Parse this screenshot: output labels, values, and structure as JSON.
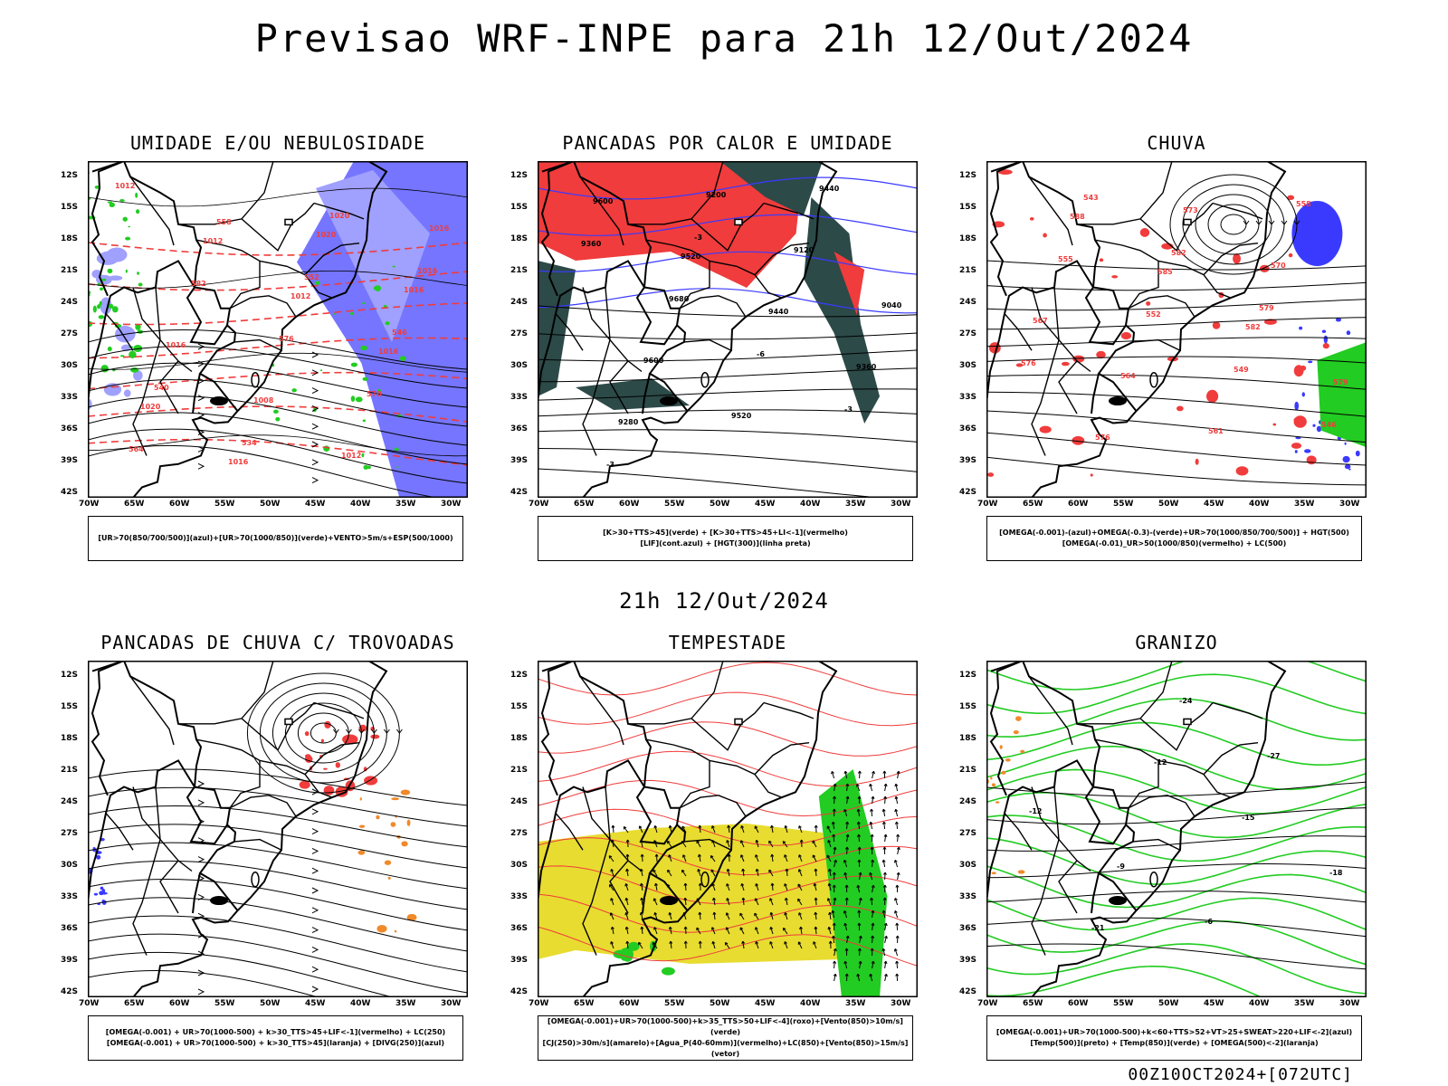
{
  "main_title": "Previsao WRF-INPE  para 21h 12/Out/2024",
  "mid_title": "21h 12/Out/2024",
  "footer": "00Z10OCT2024+[072UTC]",
  "axes": {
    "lat_labels": [
      "12S",
      "15S",
      "18S",
      "21S",
      "24S",
      "27S",
      "30S",
      "33S",
      "36S",
      "39S",
      "42S"
    ],
    "lon_labels": [
      "70W",
      "65W",
      "60W",
      "55W",
      "50W",
      "45W",
      "40W",
      "35W",
      "30W"
    ]
  },
  "panels": [
    {
      "title": "UMIDADE E/OU NEBULOSIDADE",
      "caption": [
        "[UR>70(850/700/500)](azul)+[UR>70(1000/850)](verde)+VENTO>5m/s+ESP(500/1000)"
      ],
      "labels": [
        "1012",
        "1012",
        "1012",
        "1016",
        "1020",
        "1016",
        "1020",
        "1016",
        "1016",
        "1008",
        "1012",
        "1016",
        "582",
        "576",
        "570",
        "564",
        "558",
        "552",
        "546",
        "540",
        "534",
        "1020",
        "1016"
      ]
    },
    {
      "title": "PANCADAS POR CALOR E UMIDADE",
      "caption": [
        "[K>30+TTS>45](verde) + [K>30+TTS>45+LI<-1](vermelho)",
        "[LIF](cont.azul) + [HGT(300)](linha preta)"
      ],
      "labels": [
        "9600",
        "9520",
        "9440",
        "9360",
        "9280",
        "9200",
        "9120",
        "9040",
        "9600",
        "9520",
        "9440",
        "9360",
        "9680",
        "-6",
        "-3",
        "-3",
        "-3"
      ]
    },
    {
      "title": "CHUVA",
      "caption": [
        "[OMEGA(-0.001)-(azul)+OMEGA(-0.3)-(verde)+UR>70(1000/850/700/500)] + HGT(500)",
        "[OMEGA(-0.01)_UR>50(1000/850)(vermelho) + LC(500)"
      ],
      "labels": [
        "588",
        "585",
        "582",
        "579",
        "576",
        "573",
        "570",
        "567",
        "564",
        "561",
        "558",
        "555",
        "552",
        "549",
        "546",
        "543",
        "582",
        "579",
        "576"
      ]
    },
    {
      "title": "PANCADAS DE CHUVA C/ TROVOADAS",
      "caption": [
        "[OMEGA(-0.001) + UR>70(1000-500) + k>30_TTS>45+LIF<-1](vermelho) + LC(250)",
        "[OMEGA(-0.001) + UR>70(1000-500) + k>30_TTS>45](laranja) + [DIVG(250)](azul)"
      ],
      "labels": []
    },
    {
      "title": "TEMPESTADE",
      "caption": [
        "[OMEGA(-0.001)+UR>70(1000-500)+k>35_TTS>50+LIF<-4](roxo)+[Vento(850)>10m/s](verde)",
        "[CJ(250)>30m/s](amarelo)+[Agua_P(40-60mm)](vermelho)+LC(850)+[Vento(850)>15m/s](vetor)"
      ],
      "labels": []
    },
    {
      "title": "GRANIZO",
      "caption": [
        "[OMEGA(-0.001)+UR>70(1000-500)+k<60+TTS>52+VT>25+SWEAT>220+LIF<-2](azul)",
        "[Temp(500)](preto) + [Temp(850)](verde) + [OMEGA(500)<-2](laranja)"
      ],
      "labels": [
        "-12",
        "-15",
        "-18",
        "-21",
        "-24",
        "-27",
        "-12",
        "-9",
        "-6"
      ]
    }
  ],
  "colors": {
    "red": "#f03c3c",
    "green": "#22cc22",
    "blue": "#3a3aff",
    "lightblue": "#a0a0ff",
    "yellow": "#e8dc30",
    "orange": "#f08a2a",
    "darkteal": "#2c4a48",
    "purple": "#a020a0"
  }
}
